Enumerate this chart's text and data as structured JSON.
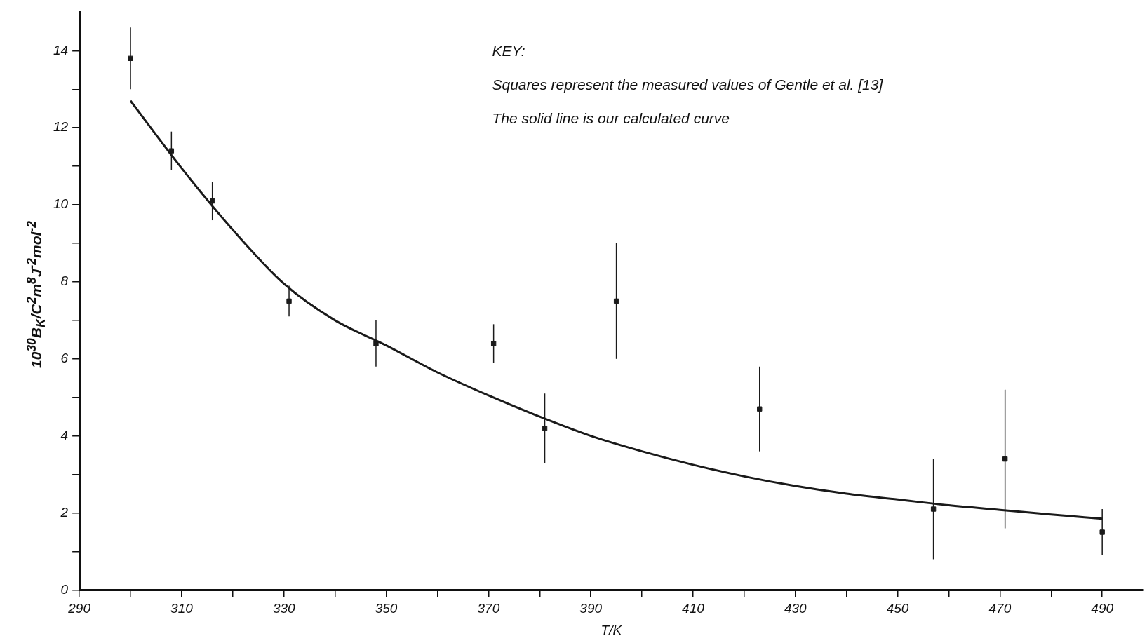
{
  "chart_data": {
    "type": "scatter",
    "xlabel": "T/K",
    "ylabel": "10$^{30}$B$_{K}$/C$^{2}$m$^{8}$J$^{-2}$mol$^{-2}$",
    "annotations": [
      "KEY:",
      "Squares represent the measured values of Gentle et al. [13]",
      "The solid line is our calculated curve"
    ],
    "xlim": [
      290,
      498
    ],
    "ylim": [
      0,
      15
    ],
    "xticks": [
      290,
      {
        "value": 300,
        "label": null
      },
      310,
      {
        "value": 320,
        "label": null
      },
      330,
      {
        "value": 340,
        "label": null
      },
      350,
      {
        "value": 360,
        "label": null
      },
      370,
      {
        "value": 380,
        "label": null
      },
      390,
      {
        "value": 400,
        "label": null
      },
      410,
      {
        "value": 420,
        "label": null
      },
      430,
      {
        "value": 440,
        "label": null
      },
      450,
      {
        "value": 460,
        "label": null
      },
      470,
      {
        "value": 480,
        "label": null
      },
      490
    ],
    "yticks": [
      0,
      {
        "value": 1,
        "label": null
      },
      2,
      {
        "value": 3,
        "label": null
      },
      4,
      {
        "value": 5,
        "label": null
      },
      6,
      {
        "value": 7,
        "label": null
      },
      8,
      {
        "value": 9,
        "label": null
      },
      10,
      {
        "value": 11,
        "label": null
      },
      12,
      {
        "value": 13,
        "label": null
      },
      14
    ],
    "grid": false,
    "legend": false,
    "series": [
      {
        "type": "scatter",
        "marker": "square",
        "color": "#1a1a1a",
        "x": [
          300,
          308,
          316,
          331,
          348,
          371,
          381,
          395,
          423,
          457,
          471,
          490
        ],
        "values": [
          13.8,
          11.4,
          10.1,
          7.5,
          6.4,
          6.4,
          4.2,
          7.5,
          4.7,
          2.1,
          3.4,
          1.5
        ],
        "errors": [
          0.8,
          0.5,
          0.5,
          0.4,
          0.6,
          0.5,
          0.9,
          1.5,
          1.1,
          1.3,
          1.8,
          0.6
        ]
      },
      {
        "type": "line",
        "marker": "none",
        "line_style": "solid",
        "color": "#1a1a1a",
        "x": [
          300,
          310,
          320,
          330,
          340,
          350,
          360,
          370,
          380,
          390,
          400,
          410,
          420,
          430,
          440,
          450,
          460,
          470,
          480,
          490
        ],
        "values": [
          12.7,
          10.95,
          9.35,
          7.95,
          7.0,
          6.35,
          5.65,
          5.05,
          4.5,
          4.0,
          3.6,
          3.25,
          2.95,
          2.7,
          2.5,
          2.35,
          2.2,
          2.08,
          1.96,
          1.85
        ]
      }
    ]
  }
}
